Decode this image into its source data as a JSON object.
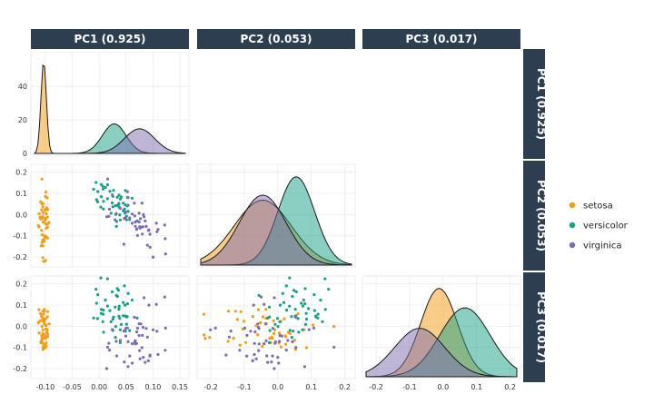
{
  "colors": {
    "strip_bg": "#2c3e50",
    "strip_text": "#ffffff",
    "panel_bg": "#ffffff",
    "grid": "#ebebeb",
    "setosa": "#f39c12",
    "versicolor": "#16a085",
    "virginica": "#7e6bb0"
  },
  "strips": {
    "columns": [
      "PC1 (0.925)",
      "PC2 (0.053)",
      "PC3 (0.017)"
    ],
    "rows": [
      "PC1 (0.925)",
      "PC2 (0.053)",
      "PC3 (0.017)"
    ]
  },
  "legend": {
    "entries": [
      {
        "label": "setosa",
        "color_key": "setosa"
      },
      {
        "label": "versicolor",
        "color_key": "versicolor"
      },
      {
        "label": "virginica",
        "color_key": "virginica"
      }
    ]
  },
  "chart_data": {
    "type": "scatter",
    "layout": "pairs-matrix (lower triangle scatter, diagonal density)",
    "grid": true,
    "legend_position": "right",
    "axes": {
      "PC1": {
        "lim": [
          -0.12,
          0.16
        ],
        "ticks": [
          -0.1,
          -0.05,
          0.0,
          0.05,
          0.1,
          0.15
        ],
        "tick_labels": [
          "-0.10",
          "-0.05",
          "0.00",
          "0.05",
          "0.10",
          "0.15"
        ]
      },
      "PC2": {
        "lim": [
          -0.23,
          0.22
        ],
        "ticks": [
          -0.2,
          -0.1,
          0.0,
          0.1,
          0.2
        ],
        "tick_labels": [
          "-0.2",
          "-0.1",
          "0.0",
          "0.1",
          "0.2"
        ]
      },
      "PC3": {
        "lim": [
          -0.23,
          0.22
        ],
        "ticks": [
          -0.2,
          -0.1,
          0.0,
          0.1,
          0.2
        ],
        "tick_labels": [
          "-0.2",
          "-0.1",
          "0.0",
          "0.1",
          "0.2"
        ]
      }
    },
    "density_axis": {
      "lim": [
        0,
        58
      ],
      "ticks": [
        0,
        20,
        40
      ],
      "tick_labels": [
        "0",
        "20",
        "40"
      ]
    },
    "series": [
      {
        "name": "setosa",
        "color_key": "setosa",
        "pc1": {
          "mean": -0.103,
          "sd": 0.005
        },
        "pc2": {
          "mean": -0.045,
          "sd": 0.085
        },
        "pc3": {
          "mean": -0.012,
          "sd": 0.055
        },
        "density": {
          "pc1_peak": 56,
          "pc2_peak": 3.9,
          "pc3_peak": 8.2
        }
      },
      {
        "name": "versicolor",
        "color_key": "versicolor",
        "pc1": {
          "mean": 0.028,
          "sd": 0.022
        },
        "pc2": {
          "mean": 0.055,
          "sd": 0.055
        },
        "pc3": {
          "mean": 0.065,
          "sd": 0.075
        },
        "density": {
          "pc1_peak": 18,
          "pc2_peak": 5.3,
          "pc3_peak": 6.4
        }
      },
      {
        "name": "virginica",
        "color_key": "virginica",
        "pc1": {
          "mean": 0.075,
          "sd": 0.028
        },
        "pc2": {
          "mean": -0.045,
          "sd": 0.07
        },
        "pc3": {
          "mean": -0.07,
          "sd": 0.075
        },
        "density": {
          "pc1_peak": 15,
          "pc2_peak": 4.2,
          "pc3_peak": 4.5
        }
      }
    ],
    "points_per_series": 50
  }
}
